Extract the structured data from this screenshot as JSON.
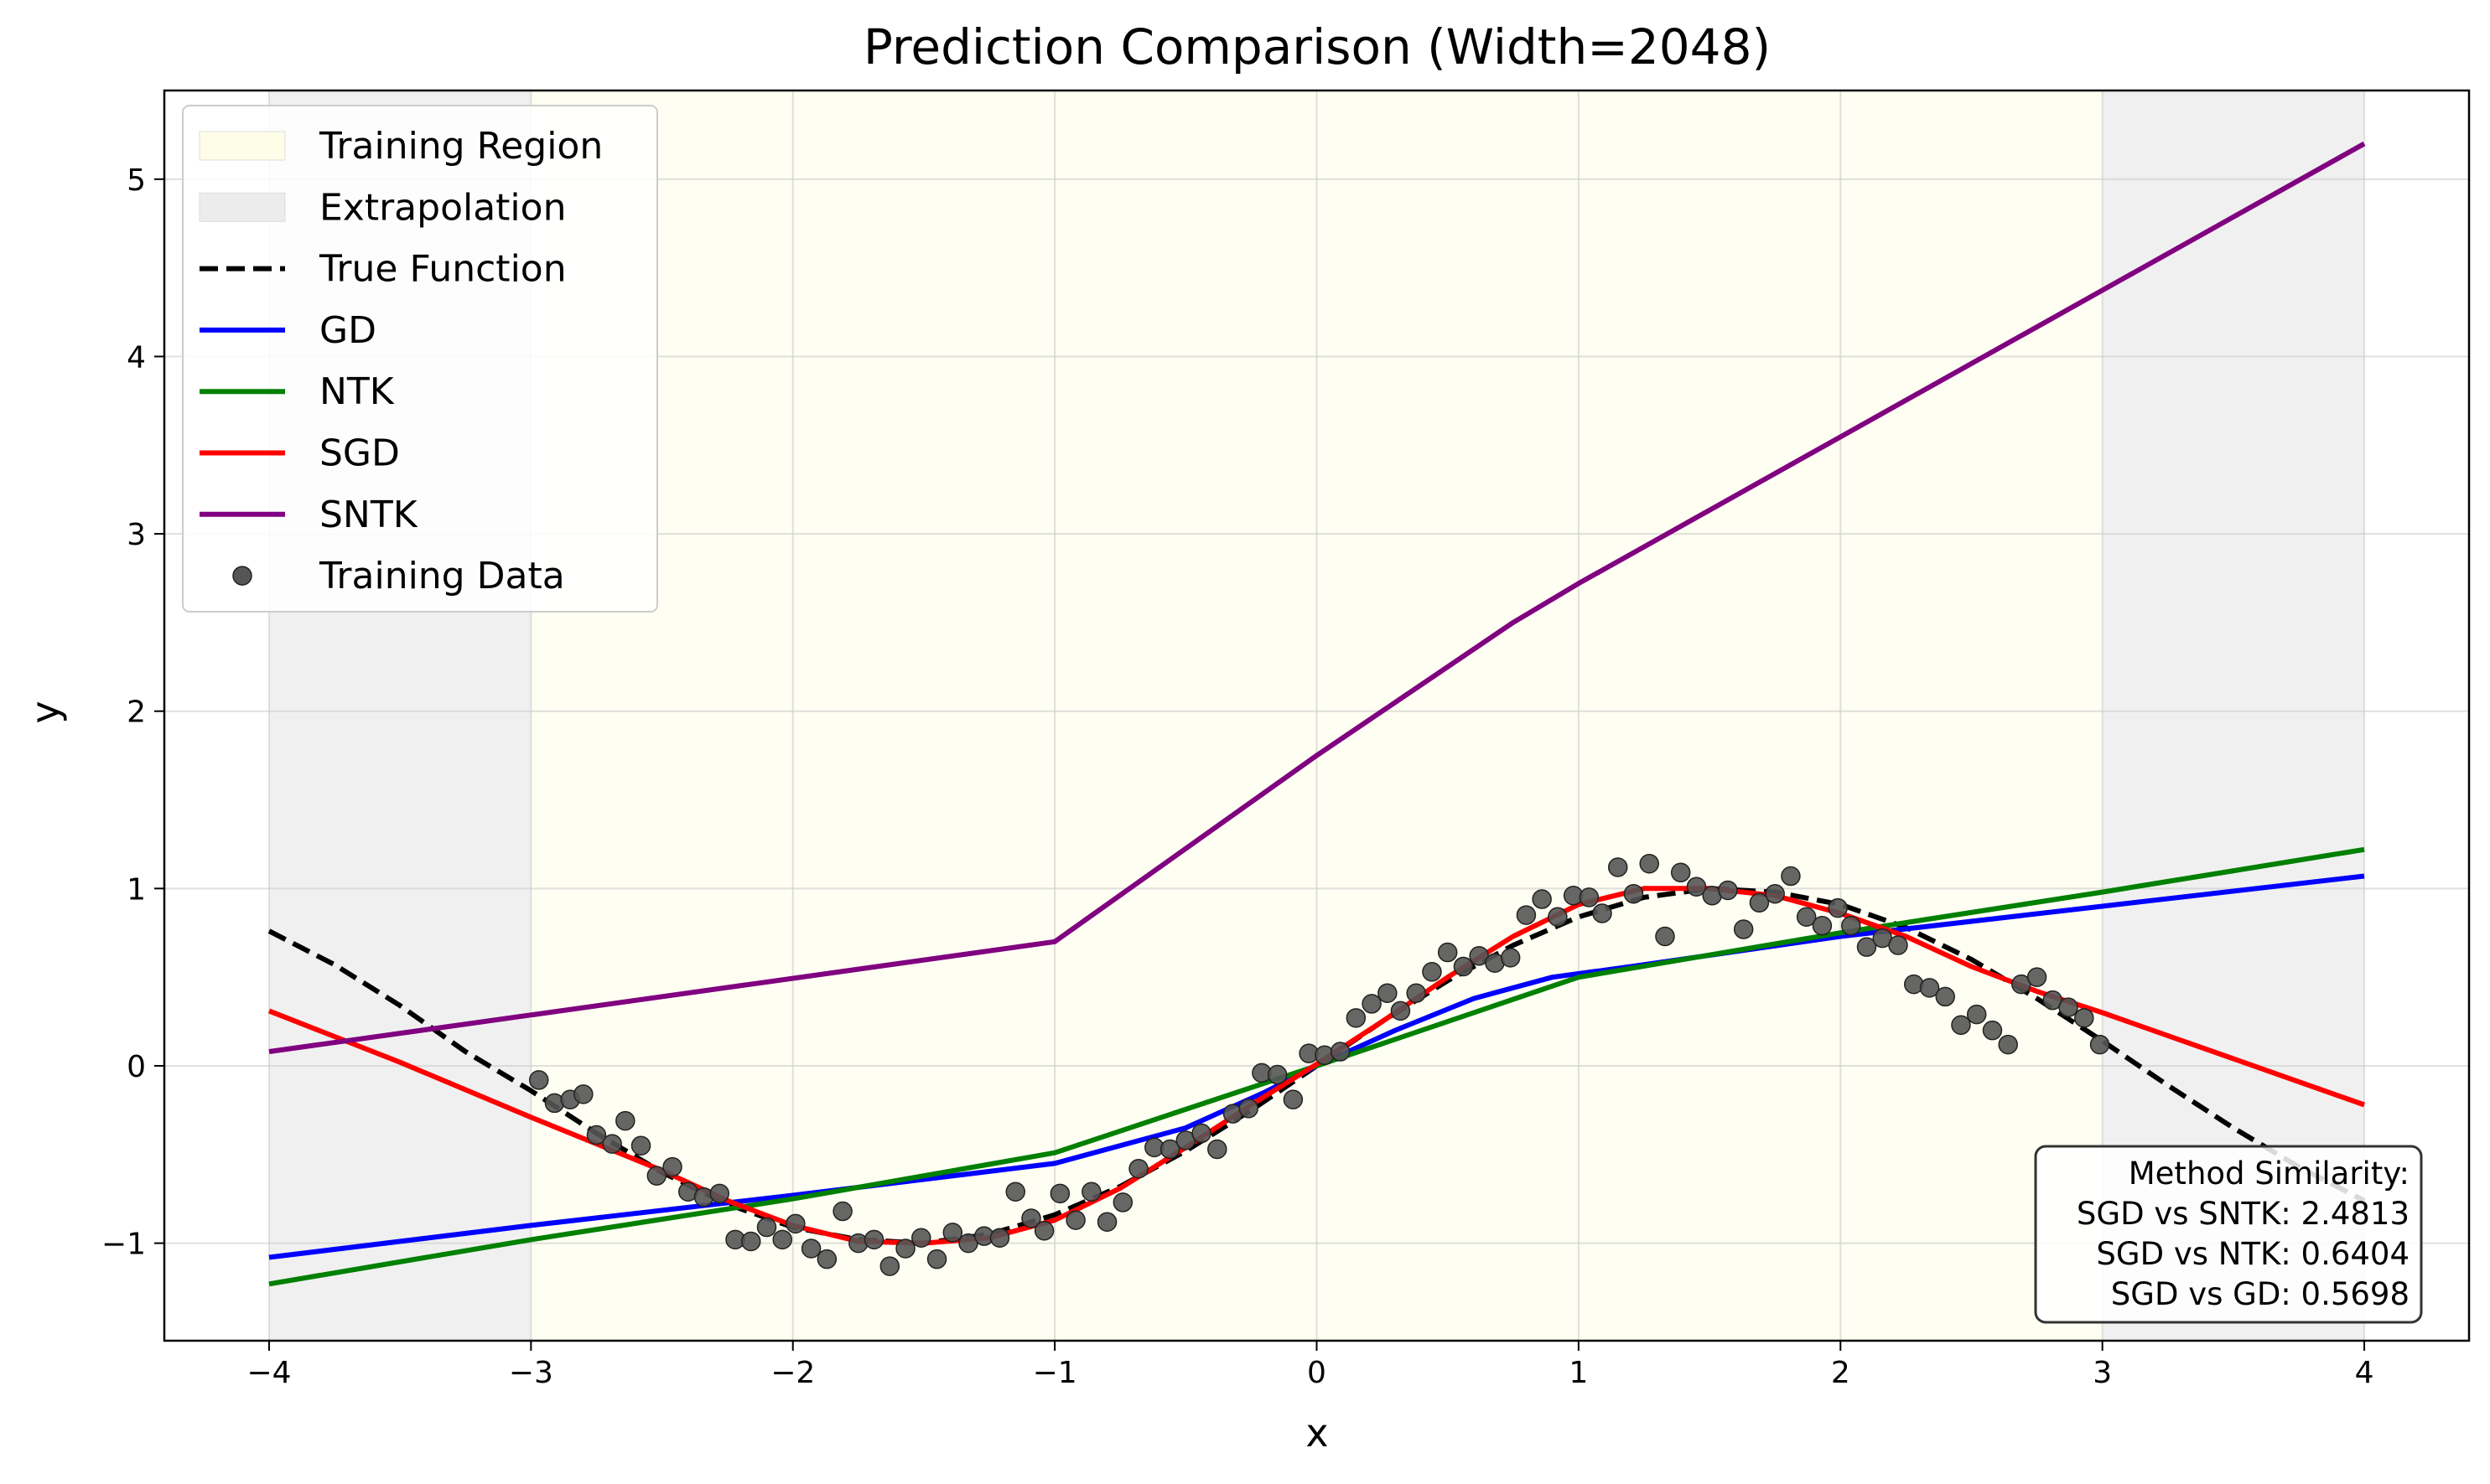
{
  "chart_data": {
    "type": "line",
    "title": "Prediction Comparison (Width=2048)",
    "xlabel": "x",
    "ylabel": "y",
    "xlim": [
      -4.4,
      4.4
    ],
    "ylim": [
      -1.55,
      5.5
    ],
    "xticks": [
      -4,
      -3,
      -2,
      -1,
      0,
      1,
      2,
      3,
      4
    ],
    "yticks": [
      -1,
      0,
      1,
      2,
      3,
      4,
      5
    ],
    "xtick_labels": [
      "−4",
      "−3",
      "−2",
      "−1",
      "0",
      "1",
      "2",
      "3",
      "4"
    ],
    "ytick_labels": [
      "−1",
      "0",
      "1",
      "2",
      "3",
      "4",
      "5"
    ],
    "grid": true,
    "legend_position": "upper-left",
    "regions": [
      {
        "name": "Extrapolation",
        "x0": -4,
        "x1": -3,
        "color": "#f0f0f0"
      },
      {
        "name": "Training Region",
        "x0": -3,
        "x1": 3,
        "color": "#fefef2"
      },
      {
        "name": "Extrapolation",
        "x0": 3,
        "x1": 4,
        "color": "#f0f0f0"
      }
    ],
    "legend": [
      {
        "label": "Training Region",
        "kind": "patch",
        "color": "#fdfde8"
      },
      {
        "label": "Extrapolation",
        "kind": "patch",
        "color": "#ececec"
      },
      {
        "label": "True Function",
        "kind": "dashed",
        "color": "#000000"
      },
      {
        "label": "GD",
        "kind": "line",
        "color": "#0000ff"
      },
      {
        "label": "NTK",
        "kind": "line",
        "color": "#008000"
      },
      {
        "label": "SGD",
        "kind": "line",
        "color": "#ff0000"
      },
      {
        "label": "SNTK",
        "kind": "line",
        "color": "#800080"
      },
      {
        "label": "Training Data",
        "kind": "marker",
        "color": "#555555"
      }
    ],
    "series": [
      {
        "name": "True Function",
        "color": "#000000",
        "dashed": true,
        "x": [
          -4,
          -3.75,
          -3.5,
          -3.25,
          -3,
          -2.75,
          -2.5,
          -2.25,
          -2,
          -1.75,
          -1.5,
          -1.25,
          -1,
          -0.75,
          -0.5,
          -0.25,
          0,
          0.25,
          0.5,
          0.75,
          1,
          1.25,
          1.5,
          1.75,
          2,
          2.25,
          2.5,
          2.75,
          3,
          3.25,
          3.5,
          3.75,
          4
        ],
        "y": [
          0.76,
          0.57,
          0.34,
          0.08,
          -0.14,
          -0.38,
          -0.6,
          -0.78,
          -0.91,
          -0.98,
          -1.0,
          -0.95,
          -0.84,
          -0.68,
          -0.48,
          -0.25,
          0.0,
          0.25,
          0.48,
          0.68,
          0.84,
          0.95,
          1.0,
          0.98,
          0.91,
          0.78,
          0.6,
          0.38,
          0.14,
          -0.11,
          -0.35,
          -0.57,
          -0.76
        ]
      },
      {
        "name": "GD",
        "color": "#0000ff",
        "x": [
          -4,
          -3,
          -2,
          -1,
          -0.5,
          -0.2,
          0,
          0.3,
          0.6,
          0.9,
          1.2,
          2,
          3,
          4
        ],
        "y": [
          -1.08,
          -0.9,
          -0.73,
          -0.55,
          -0.35,
          -0.15,
          0.0,
          0.2,
          0.38,
          0.5,
          0.56,
          0.73,
          0.9,
          1.07
        ]
      },
      {
        "name": "NTK",
        "color": "#008000",
        "x": [
          -4,
          -3,
          -2,
          -1,
          0,
          1,
          2,
          3,
          4
        ],
        "y": [
          -1.23,
          -0.98,
          -0.75,
          -0.49,
          0.0,
          0.5,
          0.75,
          0.98,
          1.22
        ]
      },
      {
        "name": "SGD",
        "color": "#ff0000",
        "x": [
          -4,
          -3.5,
          -3,
          -2.5,
          -2.25,
          -2,
          -1.75,
          -1.5,
          -1.25,
          -1,
          -0.75,
          -0.5,
          -0.25,
          0,
          0.25,
          0.5,
          0.75,
          1,
          1.25,
          1.5,
          1.75,
          2,
          2.25,
          2.5,
          2.75,
          3,
          3.5,
          4
        ],
        "y": [
          0.31,
          0.02,
          -0.29,
          -0.59,
          -0.76,
          -0.9,
          -0.99,
          -1.0,
          -0.97,
          -0.87,
          -0.69,
          -0.46,
          -0.22,
          0.01,
          0.25,
          0.5,
          0.73,
          0.91,
          1.0,
          1.0,
          0.96,
          0.86,
          0.73,
          0.56,
          0.42,
          0.3,
          0.04,
          -0.22
        ]
      },
      {
        "name": "SNTK",
        "color": "#800080",
        "x": [
          -4,
          -1,
          0,
          0.75,
          1,
          4
        ],
        "y": [
          0.08,
          0.7,
          1.75,
          2.5,
          2.72,
          5.2
        ]
      }
    ],
    "training_data": {
      "name": "Training Data",
      "color": "#555555",
      "x": [
        -2.97,
        -2.91,
        -2.85,
        -2.8,
        -2.75,
        -2.69,
        -2.64,
        -2.58,
        -2.52,
        -2.46,
        -2.4,
        -2.34,
        -2.28,
        -2.22,
        -2.16,
        -2.1,
        -2.04,
        -1.99,
        -1.93,
        -1.87,
        -1.81,
        -1.75,
        -1.69,
        -1.63,
        -1.57,
        -1.51,
        -1.45,
        -1.39,
        -1.33,
        -1.27,
        -1.21,
        -1.15,
        -1.09,
        -1.04,
        -0.98,
        -0.92,
        -0.86,
        -0.8,
        -0.74,
        -0.68,
        -0.62,
        -0.56,
        -0.5,
        -0.44,
        -0.38,
        -0.32,
        -0.26,
        -0.21,
        -0.15,
        -0.09,
        -0.03,
        0.03,
        0.09,
        0.15,
        0.21,
        0.27,
        0.32,
        0.38,
        0.44,
        0.5,
        0.56,
        0.62,
        0.68,
        0.74,
        0.8,
        0.86,
        0.92,
        0.98,
        1.04,
        1.09,
        1.15,
        1.21,
        1.27,
        1.33,
        1.39,
        1.45,
        1.51,
        1.57,
        1.63,
        1.69,
        1.75,
        1.81,
        1.87,
        1.93,
        1.99,
        2.04,
        2.1,
        2.16,
        2.22,
        2.28,
        2.34,
        2.4,
        2.46,
        2.52,
        2.58,
        2.64,
        2.69,
        2.75,
        2.81,
        2.87,
        2.93,
        2.99
      ],
      "y": [
        -0.08,
        -0.21,
        -0.19,
        -0.16,
        -0.39,
        -0.44,
        -0.31,
        -0.45,
        -0.62,
        -0.57,
        -0.71,
        -0.74,
        -0.72,
        -0.98,
        -0.99,
        -0.91,
        -0.98,
        -0.89,
        -1.03,
        -1.09,
        -0.82,
        -1.0,
        -0.98,
        -1.13,
        -1.03,
        -0.97,
        -1.09,
        -0.94,
        -1.0,
        -0.96,
        -0.97,
        -0.71,
        -0.86,
        -0.93,
        -0.72,
        -0.87,
        -0.71,
        -0.88,
        -0.77,
        -0.58,
        -0.46,
        -0.47,
        -0.42,
        -0.38,
        -0.47,
        -0.27,
        -0.24,
        -0.04,
        -0.05,
        -0.19,
        0.07,
        0.06,
        0.08,
        0.27,
        0.35,
        0.41,
        0.31,
        0.41,
        0.53,
        0.64,
        0.56,
        0.62,
        0.58,
        0.61,
        0.85,
        0.94,
        0.84,
        0.96,
        0.95,
        0.86,
        1.12,
        0.97,
        1.14,
        0.73,
        1.09,
        1.01,
        0.96,
        0.99,
        0.77,
        0.92,
        0.97,
        1.07,
        0.84,
        0.79,
        0.89,
        0.79,
        0.67,
        0.72,
        0.68,
        0.46,
        0.44,
        0.39,
        0.23,
        0.29,
        0.2,
        0.12,
        0.46,
        0.5,
        0.37,
        0.33,
        0.27,
        0.12
      ]
    },
    "annotation": {
      "title": "Method Similarity:",
      "lines": [
        "SGD vs SNTK: 2.4813",
        "SGD vs NTK: 0.6404",
        "SGD vs GD: 0.5698"
      ],
      "position": "lower-right"
    }
  }
}
